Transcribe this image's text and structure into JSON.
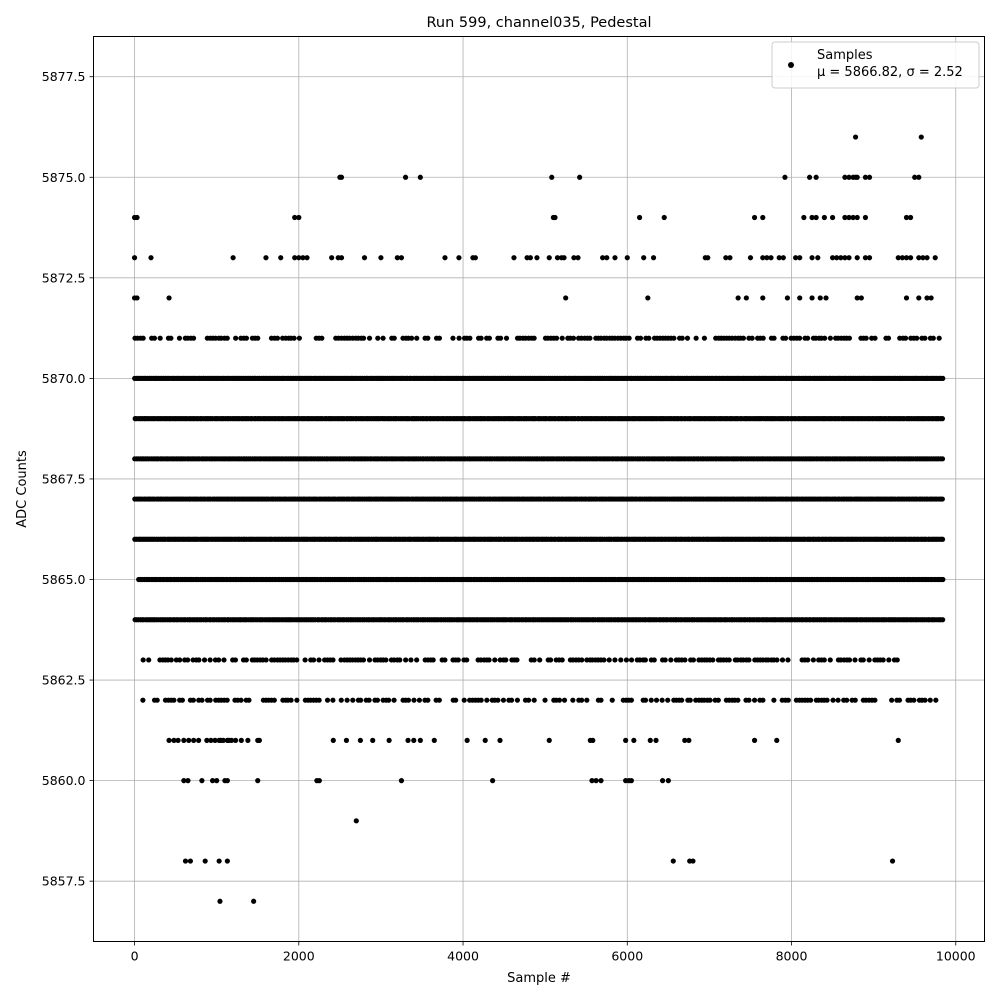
{
  "chart_data": {
    "type": "scatter",
    "title": "Run 599, channel035, Pedestal",
    "xlabel": "Sample #",
    "ylabel": "ADC Counts",
    "xlim": [
      -500,
      10350
    ],
    "ylim": [
      5856.0,
      5878.5
    ],
    "x_ticks": [
      0,
      2000,
      4000,
      6000,
      8000,
      10000
    ],
    "x_tick_labels": [
      "0",
      "2000",
      "4000",
      "6000",
      "8000",
      "10000"
    ],
    "y_ticks": [
      5857.5,
      5860.0,
      5862.5,
      5865.0,
      5867.5,
      5870.0,
      5872.5,
      5875.0,
      5877.5
    ],
    "y_tick_labels": [
      "5857.5",
      "5860.0",
      "5862.5",
      "5865.0",
      "5867.5",
      "5870.0",
      "5872.5",
      "5875.0",
      "5877.5"
    ],
    "grid": true,
    "legend_position": "top-right",
    "legend": {
      "label": "Samples",
      "stats": "μ = 5866.82, σ = 2.52"
    },
    "marker_color": "#000000",
    "series": [
      {
        "name": "Samples",
        "band_sample_range": [
          0,
          9850
        ],
        "dense_levels": [
          {
            "y": 5864,
            "x_range": [
              0,
              9850
            ]
          },
          {
            "y": 5865,
            "x_range": [
              50,
              9850
            ]
          },
          {
            "y": 5866,
            "x_range": [
              0,
              9850
            ]
          },
          {
            "y": 5867,
            "x_range": [
              0,
              9850
            ]
          },
          {
            "y": 5868,
            "x_range": [
              0,
              9850
            ]
          },
          {
            "y": 5869,
            "x_range": [
              0,
              9850
            ]
          },
          {
            "y": 5870,
            "x_range": [
              0,
              9850
            ]
          },
          {
            "y": 5871,
            "x_range": [
              0,
              9850
            ]
          },
          {
            "y": 5862,
            "x_range": [
              100,
              9850
            ]
          },
          {
            "y": 5863,
            "x_range": [
              100,
              9300
            ]
          }
        ],
        "sparse_points": {
          "5873": [
            0,
            200,
            1200,
            1600,
            1780,
            1950,
            2000,
            2050,
            2100,
            2400,
            2480,
            2520,
            2800,
            3000,
            3200,
            3250,
            3780,
            3950,
            4120,
            4150,
            4620,
            4780,
            4820,
            4900,
            5050,
            5150,
            5200,
            5230,
            5350,
            5400,
            5700,
            5750,
            5850,
            6000,
            6200,
            6320,
            6950,
            6980,
            7200,
            7250,
            7500,
            7650,
            7700,
            7750,
            7850,
            7900,
            8050,
            8100,
            8250,
            8320,
            8500,
            8550,
            8600,
            8650,
            8700,
            8800,
            8900,
            8950,
            9300,
            9350,
            9400,
            9450,
            9550,
            9600,
            9650,
            9750
          ],
          "5874": [
            0,
            30,
            1950,
            2000,
            5100,
            5120,
            6150,
            6450,
            7550,
            7650,
            8150,
            8250,
            8300,
            8400,
            8500,
            8650,
            8700,
            8750,
            8800,
            8900,
            9400,
            9450
          ],
          "5875": [
            2500,
            2520,
            3300,
            3480,
            5080,
            5420,
            7920,
            8220,
            8300,
            8650,
            8700,
            8750,
            8780,
            8800,
            8900,
            8950,
            9500,
            9550
          ],
          "5872": [
            0,
            30,
            420,
            5250,
            6250,
            7350,
            7450,
            7650,
            7950,
            8100,
            8250,
            8350,
            8420,
            8800,
            8850,
            9400,
            9550,
            9650,
            9700
          ],
          "5876": [
            8780,
            9580
          ],
          "5877": [],
          "5861": [
            420,
            480,
            530,
            600,
            660,
            720,
            780,
            880,
            930,
            980,
            1030,
            1050,
            1080,
            1130,
            1150,
            1180,
            1230,
            1300,
            1380,
            1500,
            1520,
            2420,
            2580,
            2750,
            2900,
            3100,
            3330,
            3400,
            3480,
            3650,
            4050,
            4270,
            4450,
            5050,
            5550,
            5580,
            5980,
            6080,
            6280,
            6350,
            6700,
            6750,
            7550,
            7820,
            9300
          ],
          "5860": [
            600,
            650,
            820,
            950,
            1000,
            1100,
            1130,
            1500,
            2220,
            2250,
            3250,
            4360,
            5570,
            5620,
            5680,
            5980,
            6020,
            6050,
            6430,
            6500
          ],
          "5859": [
            2700
          ],
          "5858": [
            620,
            680,
            860,
            1030,
            1130,
            6560,
            6760,
            6800,
            9230
          ],
          "5857": [
            1040,
            1450
          ]
        }
      }
    ]
  }
}
